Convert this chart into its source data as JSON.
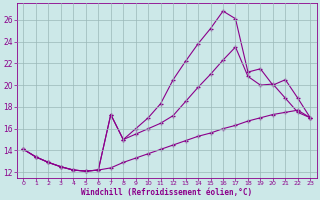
{
  "xlabel": "Windchill (Refroidissement éolien,°C)",
  "x_ticks": [
    0,
    1,
    2,
    3,
    4,
    5,
    6,
    7,
    8,
    9,
    10,
    11,
    12,
    13,
    14,
    15,
    16,
    17,
    18,
    19,
    20,
    21,
    22,
    23
  ],
  "ylim": [
    11.5,
    27.5
  ],
  "yticks": [
    12,
    14,
    16,
    18,
    20,
    22,
    24,
    26
  ],
  "xlim": [
    -0.5,
    23.5
  ],
  "line1_x": [
    0,
    1,
    2,
    3,
    4,
    5,
    6,
    7,
    8,
    9,
    10,
    11,
    12,
    13,
    14,
    15,
    16,
    17,
    18,
    19,
    20,
    21,
    22,
    23
  ],
  "line1_y": [
    14.1,
    13.4,
    12.9,
    12.5,
    12.2,
    12.1,
    12.2,
    12.4,
    12.9,
    13.3,
    13.7,
    14.1,
    14.5,
    14.9,
    15.3,
    15.6,
    16.0,
    16.3,
    16.7,
    17.0,
    17.3,
    17.5,
    17.7,
    17.0
  ],
  "line2_x": [
    0,
    1,
    2,
    3,
    4,
    5,
    6,
    7,
    8,
    9,
    10,
    11,
    12,
    13,
    14,
    15,
    16,
    17,
    18,
    19,
    20,
    21,
    22,
    23
  ],
  "line2_y": [
    14.1,
    13.4,
    12.9,
    12.5,
    12.2,
    12.1,
    12.2,
    17.3,
    15.0,
    16.0,
    17.0,
    18.3,
    20.5,
    22.2,
    23.8,
    25.2,
    26.8,
    26.1,
    21.2,
    21.5,
    20.0,
    20.5,
    18.8,
    17.0
  ],
  "line3_x": [
    0,
    1,
    2,
    3,
    4,
    5,
    6,
    7,
    8,
    9,
    10,
    11,
    12,
    13,
    14,
    15,
    16,
    17,
    18,
    19,
    20,
    21,
    22,
    23
  ],
  "line3_y": [
    14.1,
    13.4,
    12.9,
    12.5,
    12.2,
    12.1,
    12.2,
    17.3,
    15.0,
    15.5,
    16.0,
    16.5,
    17.2,
    18.5,
    19.8,
    21.0,
    22.3,
    23.5,
    20.8,
    20.0,
    20.1,
    18.8,
    17.5,
    17.0
  ],
  "color": "#8B008B",
  "bg_color": "#cce8e8",
  "grid_color": "#9ab8b8",
  "figwidth": 3.2,
  "figheight": 2.0,
  "dpi": 100
}
